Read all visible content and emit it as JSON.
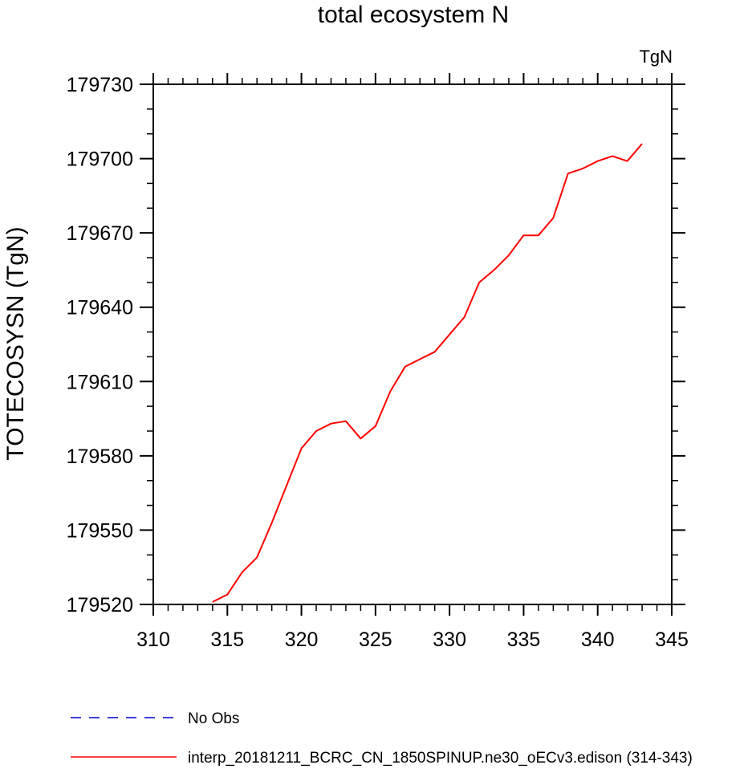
{
  "chart_data": {
    "type": "line",
    "title": "total ecosystem N",
    "units_label": "TgN",
    "xlabel": "",
    "ylabel": "TOTECOSYSN  (TgN)",
    "xlim": [
      310,
      345
    ],
    "ylim": [
      179520,
      179730
    ],
    "x_ticks": [
      310,
      315,
      320,
      325,
      330,
      335,
      340,
      345
    ],
    "y_ticks": [
      179520,
      179550,
      179580,
      179610,
      179640,
      179670,
      179700,
      179730
    ],
    "x_minor_step": 1,
    "y_minor_step": 10,
    "grid": false,
    "series": [
      {
        "name": "interp_20181211_BCRC_CN_1850SPINUP.ne30_oECv3.edison (314-343)",
        "color": "#ff0000",
        "dash": "solid",
        "x": [
          314,
          315,
          316,
          317,
          318,
          319,
          320,
          321,
          322,
          323,
          324,
          325,
          326,
          327,
          328,
          329,
          330,
          331,
          332,
          333,
          334,
          335,
          336,
          337,
          338,
          339,
          340,
          341,
          342,
          343
        ],
        "values": [
          179521,
          179524,
          179533,
          179539,
          179553,
          179568,
          179583,
          179590,
          179593,
          179594,
          179587,
          179592,
          179606,
          179616,
          179619,
          179622,
          179629,
          179636,
          179650,
          179655,
          179661,
          179669,
          179669,
          179676,
          179694,
          179696,
          179699,
          179701,
          179699,
          179706
        ]
      },
      {
        "name": "No Obs",
        "color": "#0000cc",
        "dash": "dashed",
        "x": [],
        "values": []
      }
    ],
    "legend": {
      "placement": "bottom-left",
      "entries": [
        {
          "label": "No Obs",
          "color": "#0000cc",
          "dash": "dashed"
        },
        {
          "label": "interp_20181211_BCRC_CN_1850SPINUP.ne30_oECv3.edison (314-343)",
          "color": "#ff0000",
          "dash": "solid"
        }
      ]
    }
  }
}
